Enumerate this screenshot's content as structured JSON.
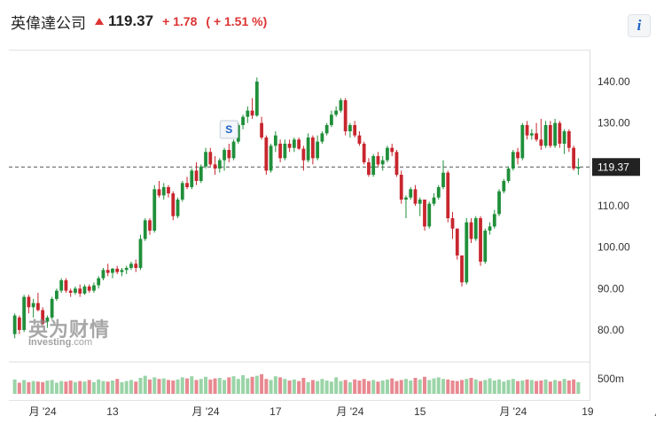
{
  "header": {
    "name": "英偉達公司",
    "price": "119.37",
    "change": "+ 1.78",
    "change_pct": "( + 1.51 %)",
    "direction_icon": "up-arrow-icon",
    "info_label": "i"
  },
  "colors": {
    "up": "#1f8f3a",
    "down": "#c8262e",
    "vol_up": "#9ad4a7",
    "vol_down": "#e88890",
    "text_red": "#d33333",
    "price_tag_bg": "#222222"
  },
  "watermark": {
    "line1": "英为财情",
    "line2_a": "Investing",
    "line2_b": ".com"
  },
  "marker": {
    "label": "S",
    "index": 46
  },
  "chart_data": {
    "type": "candlestick",
    "title": "",
    "ylim": [
      74,
      146
    ],
    "y_ticks": [
      "140.00",
      "130.00",
      "120.00",
      "110.00",
      "100.00",
      "90.00",
      "80.00"
    ],
    "y_tick_values": [
      140,
      130,
      120,
      110,
      100,
      90,
      80
    ],
    "volume_tick": "500m",
    "volume_tick_value": 500,
    "last_price": 119.37,
    "last_price_label": "119.37",
    "x_tick_labels": [
      {
        "label": "月 '24",
        "index": 6
      },
      {
        "label": "13",
        "index": 21
      },
      {
        "label": "月 '24",
        "index": 41
      },
      {
        "label": "17",
        "index": 56
      },
      {
        "label": "月 '24",
        "index": 72
      },
      {
        "label": "15",
        "index": 87
      },
      {
        "label": "月 '24",
        "index": 107
      },
      {
        "label": "19",
        "index": 123
      },
      {
        "label": "月 '",
        "index": 139
      }
    ],
    "ohlc": [
      [
        79.0,
        84.0,
        78.0,
        83.5
      ],
      [
        83.0,
        83.5,
        79.0,
        80.0
      ],
      [
        80.0,
        88.5,
        79.5,
        88.0
      ],
      [
        88.0,
        88.5,
        84.0,
        85.5
      ],
      [
        85.5,
        87.5,
        83.0,
        86.5
      ],
      [
        86.5,
        89.0,
        84.5,
        84.8
      ],
      [
        84.8,
        85.5,
        81.0,
        81.5
      ],
      [
        82.0,
        83.5,
        80.5,
        83.0
      ],
      [
        83.0,
        88.0,
        82.5,
        87.5
      ],
      [
        87.5,
        90.0,
        87.0,
        89.5
      ],
      [
        89.5,
        92.5,
        89.0,
        92.0
      ],
      [
        92.0,
        92.5,
        89.0,
        89.5
      ],
      [
        89.5,
        90.0,
        88.0,
        89.0
      ],
      [
        89.0,
        90.5,
        88.5,
        90.0
      ],
      [
        90.0,
        91.0,
        88.0,
        88.8
      ],
      [
        88.8,
        91.0,
        88.5,
        90.5
      ],
      [
        90.5,
        91.0,
        89.0,
        89.5
      ],
      [
        89.5,
        91.5,
        89.0,
        90.8
      ],
      [
        90.8,
        93.0,
        90.0,
        92.5
      ],
      [
        92.5,
        95.0,
        92.0,
        94.5
      ],
      [
        94.5,
        96.0,
        93.0,
        93.8
      ],
      [
        93.8,
        95.0,
        92.5,
        94.8
      ],
      [
        94.8,
        95.5,
        93.5,
        94.0
      ],
      [
        94.0,
        95.0,
        93.0,
        94.5
      ],
      [
        94.5,
        95.5,
        93.5,
        95.0
      ],
      [
        95.0,
        96.5,
        94.5,
        96.0
      ],
      [
        96.0,
        97.0,
        94.0,
        95.0
      ],
      [
        95.0,
        103.0,
        94.5,
        102.0
      ],
      [
        102.0,
        107.0,
        101.5,
        106.5
      ],
      [
        106.5,
        107.0,
        103.0,
        104.0
      ],
      [
        104.0,
        115.0,
        103.5,
        114.0
      ],
      [
        114.0,
        116.0,
        112.0,
        112.5
      ],
      [
        112.5,
        115.5,
        111.5,
        114.5
      ],
      [
        114.5,
        115.0,
        112.0,
        113.0
      ],
      [
        113.0,
        113.5,
        106.5,
        107.5
      ],
      [
        107.5,
        112.0,
        107.0,
        111.5
      ],
      [
        111.5,
        116.0,
        111.0,
        115.5
      ],
      [
        115.5,
        117.0,
        114.0,
        114.5
      ],
      [
        114.5,
        119.0,
        114.0,
        118.5
      ],
      [
        118.5,
        120.5,
        115.0,
        116.0
      ],
      [
        116.0,
        120.0,
        115.5,
        119.5
      ],
      [
        119.5,
        124.0,
        119.0,
        123.0
      ],
      [
        123.0,
        124.0,
        119.5,
        120.0
      ],
      [
        120.0,
        122.0,
        117.5,
        119.0
      ],
      [
        119.0,
        121.5,
        118.0,
        121.0
      ],
      [
        121.0,
        124.0,
        118.5,
        123.5
      ],
      [
        123.5,
        125.0,
        120.5,
        121.5
      ],
      [
        121.5,
        126.0,
        121.0,
        125.5
      ],
      [
        125.5,
        130.0,
        125.0,
        129.5
      ],
      [
        129.5,
        132.0,
        128.5,
        131.5
      ],
      [
        131.5,
        134.0,
        130.0,
        133.0
      ],
      [
        133.0,
        136.0,
        131.0,
        131.8
      ],
      [
        131.8,
        141.0,
        131.5,
        140.0
      ],
      [
        130.0,
        131.5,
        126.0,
        126.5
      ],
      [
        126.5,
        127.0,
        117.5,
        118.5
      ],
      [
        118.5,
        125.0,
        118.0,
        124.5
      ],
      [
        124.5,
        128.0,
        123.0,
        127.0
      ],
      [
        125.0,
        126.0,
        120.5,
        121.5
      ],
      [
        121.5,
        126.0,
        121.0,
        125.0
      ],
      [
        125.0,
        126.0,
        123.0,
        124.0
      ],
      [
        124.0,
        126.5,
        123.0,
        126.0
      ],
      [
        126.0,
        126.5,
        123.5,
        123.8
      ],
      [
        123.8,
        124.5,
        118.5,
        121.0
      ],
      [
        121.0,
        127.5,
        120.5,
        126.5
      ],
      [
        126.5,
        127.0,
        120.0,
        121.5
      ],
      [
        121.5,
        127.0,
        121.0,
        125.5
      ],
      [
        125.5,
        128.0,
        125.0,
        127.5
      ],
      [
        127.5,
        130.0,
        127.0,
        129.5
      ],
      [
        129.5,
        133.0,
        129.0,
        132.0
      ],
      [
        132.0,
        134.0,
        131.5,
        133.0
      ],
      [
        133.0,
        136.0,
        132.5,
        135.5
      ],
      [
        135.5,
        136.0,
        127.0,
        128.0
      ],
      [
        128.0,
        130.0,
        126.5,
        129.5
      ],
      [
        129.5,
        130.5,
        126.5,
        127.0
      ],
      [
        127.0,
        128.0,
        124.5,
        125.0
      ],
      [
        125.0,
        125.5,
        120.0,
        120.5
      ],
      [
        120.5,
        121.5,
        117.0,
        117.5
      ],
      [
        117.5,
        122.5,
        117.0,
        122.0
      ],
      [
        122.0,
        123.0,
        119.5,
        120.0
      ],
      [
        120.0,
        122.0,
        118.5,
        121.0
      ],
      [
        121.0,
        124.5,
        120.5,
        124.0
      ],
      [
        124.0,
        125.0,
        122.0,
        123.0
      ],
      [
        123.0,
        123.5,
        117.0,
        117.5
      ],
      [
        117.5,
        118.5,
        110.5,
        111.5
      ],
      [
        111.5,
        112.5,
        107.0,
        112.0
      ],
      [
        112.0,
        114.5,
        111.5,
        114.0
      ],
      [
        114.0,
        115.0,
        110.0,
        110.5
      ],
      [
        110.5,
        112.0,
        107.5,
        111.5
      ],
      [
        111.5,
        111.5,
        104.0,
        105.0
      ],
      [
        105.0,
        111.0,
        104.5,
        110.5
      ],
      [
        110.5,
        113.0,
        110.0,
        112.0
      ],
      [
        112.0,
        115.0,
        111.5,
        114.5
      ],
      [
        114.5,
        121.0,
        114.0,
        118.0
      ],
      [
        118.0,
        118.5,
        106.0,
        107.0
      ],
      [
        107.0,
        108.5,
        102.0,
        104.5
      ],
      [
        104.5,
        104.5,
        97.0,
        98.0
      ],
      [
        98.0,
        98.0,
        90.5,
        91.5
      ],
      [
        91.5,
        107.0,
        91.0,
        106.0
      ],
      [
        106.0,
        107.0,
        101.0,
        102.0
      ],
      [
        102.0,
        107.5,
        101.5,
        107.0
      ],
      [
        107.0,
        107.5,
        95.5,
        96.5
      ],
      [
        96.5,
        104.5,
        96.0,
        104.0
      ],
      [
        104.0,
        106.0,
        103.0,
        105.0
      ],
      [
        105.0,
        109.0,
        104.5,
        108.0
      ],
      [
        108.0,
        114.0,
        107.5,
        113.5
      ],
      [
        113.5,
        116.5,
        113.0,
        116.0
      ],
      [
        116.0,
        119.5,
        115.5,
        119.0
      ],
      [
        119.0,
        123.5,
        118.5,
        123.0
      ],
      [
        123.0,
        124.0,
        120.0,
        121.5
      ],
      [
        121.5,
        130.0,
        121.0,
        129.5
      ],
      [
        129.5,
        130.5,
        126.0,
        127.0
      ],
      [
        127.0,
        128.5,
        126.0,
        127.5
      ],
      [
        127.5,
        130.0,
        125.5,
        126.0
      ],
      [
        126.0,
        131.0,
        123.5,
        124.5
      ],
      [
        124.5,
        130.5,
        124.0,
        129.5
      ],
      [
        129.5,
        130.5,
        124.0,
        124.5
      ],
      [
        124.5,
        131.0,
        124.0,
        130.0
      ],
      [
        130.0,
        130.5,
        124.0,
        125.0
      ],
      [
        125.0,
        128.5,
        122.5,
        128.0
      ],
      [
        128.0,
        128.5,
        123.0,
        124.0
      ],
      [
        124.0,
        124.5,
        118.5,
        119.0
      ],
      [
        119.0,
        121.5,
        117.5,
        119.37
      ]
    ],
    "volume": [
      27,
      21,
      26,
      22,
      24,
      23,
      22,
      25,
      26,
      21,
      24,
      23,
      25,
      22,
      24,
      23,
      26,
      22,
      27,
      24,
      23,
      25,
      28,
      22,
      24,
      26,
      23,
      30,
      34,
      27,
      31,
      28,
      29,
      26,
      25,
      27,
      31,
      29,
      33,
      26,
      28,
      32,
      27,
      29,
      30,
      26,
      31,
      33,
      28,
      35,
      29,
      32,
      34,
      37,
      28,
      26,
      33,
      31,
      28,
      25,
      27,
      24,
      30,
      22,
      26,
      24,
      28,
      25,
      23,
      31,
      24,
      26,
      22,
      27,
      25,
      28,
      24,
      26,
      23,
      25,
      27,
      29,
      24,
      26,
      28,
      25,
      30,
      27,
      32,
      26,
      29,
      31,
      28,
      27,
      25,
      24,
      26,
      28,
      30,
      27,
      24,
      26,
      29,
      25,
      27,
      23,
      26,
      28,
      24,
      25,
      27,
      26,
      24,
      25,
      27,
      23,
      26,
      24,
      28,
      25,
      27,
      22
    ]
  }
}
